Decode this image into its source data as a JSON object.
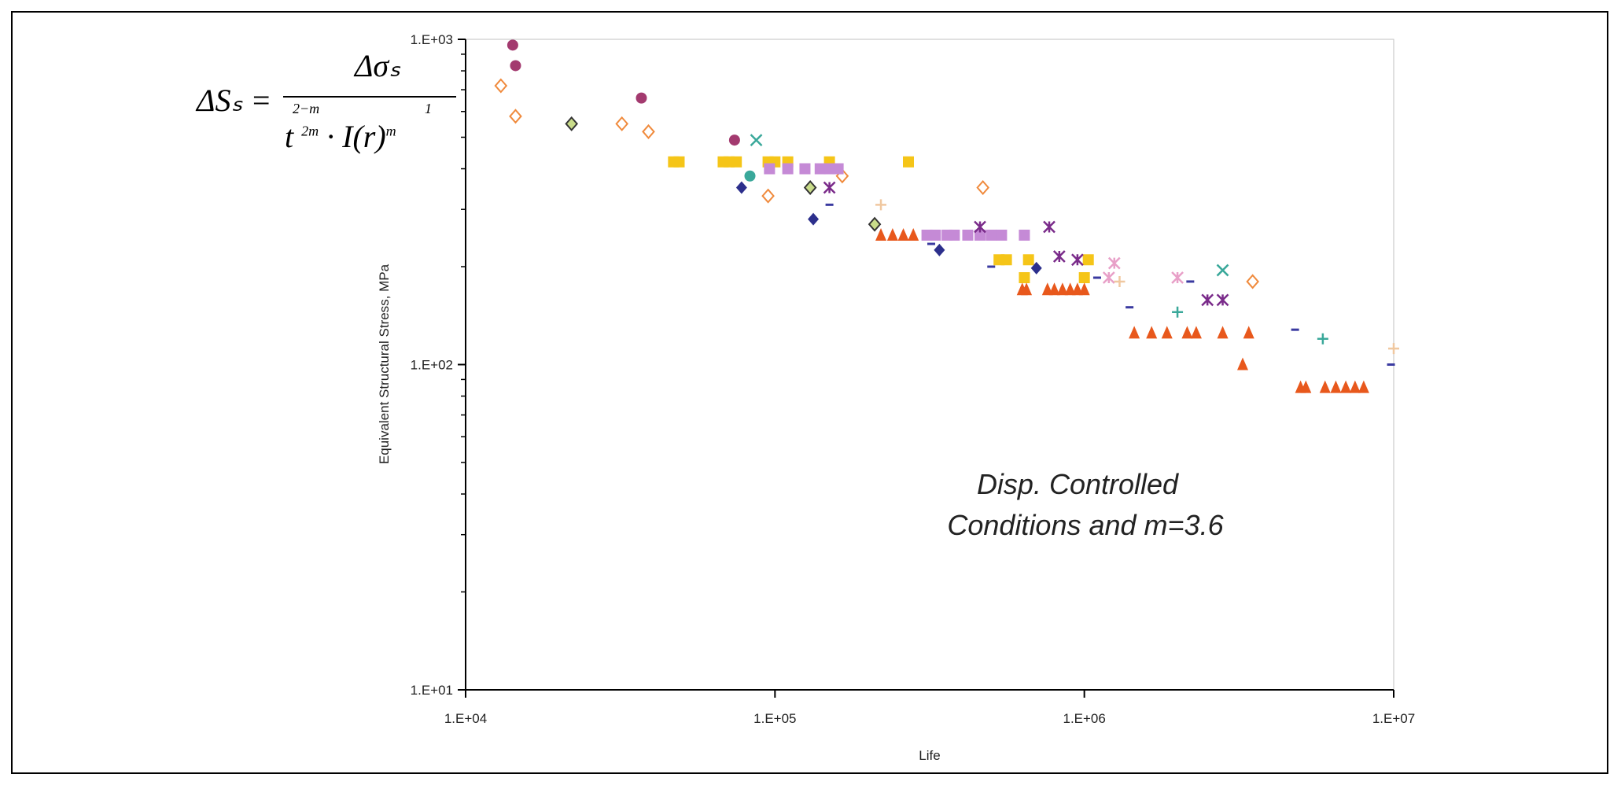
{
  "chart_data": {
    "type": "scatter",
    "title": "",
    "xlabel": "Life",
    "ylabel": "Equivalent Structural Stress, MPa",
    "xscale": "log",
    "yscale": "log",
    "xlim": [
      10000,
      10000000
    ],
    "ylim": [
      10,
      1000
    ],
    "xticks": [
      "1.E+04",
      "1.E+05",
      "1.E+06",
      "1.E+07"
    ],
    "yticks": [
      "1.E+01",
      "1.E+02",
      "1.E+03"
    ],
    "grid": false,
    "legend": "none",
    "formula": {
      "lhs": "ΔSₛ =",
      "numerator": "Δσₛ",
      "exp_t": "2−m",
      "exp_t_den": "2m",
      "exp_I": "1",
      "exp_I_den": "m",
      "denominator_t": "t",
      "denominator_rest": "· I(r)"
    },
    "annotation_lines": [
      "Disp. Controlled",
      "Conditions and m=3.6"
    ],
    "series": [
      {
        "marker": "circle",
        "color": "#a33a6f",
        "points": [
          [
            14200,
            960
          ],
          [
            14500,
            830
          ],
          [
            37000,
            660
          ],
          [
            74000,
            490
          ]
        ]
      },
      {
        "marker": "diamond-open",
        "color": "#f08a3c",
        "points": [
          [
            13000,
            720
          ],
          [
            14500,
            580
          ],
          [
            32000,
            550
          ],
          [
            39000,
            520
          ],
          [
            95000,
            330
          ],
          [
            165000,
            380
          ],
          [
            470000,
            350
          ],
          [
            3500000,
            180
          ]
        ]
      },
      {
        "marker": "diamond-green",
        "color": "#7a9a3a",
        "points": [
          [
            22000,
            550
          ],
          [
            130000,
            350
          ],
          [
            210000,
            270
          ]
        ]
      },
      {
        "marker": "square",
        "color": "#f5c518",
        "points": [
          [
            47000,
            420
          ],
          [
            49000,
            420
          ],
          [
            68000,
            420
          ],
          [
            71000,
            420
          ],
          [
            75000,
            420
          ],
          [
            95000,
            420
          ],
          [
            100000,
            420
          ],
          [
            110000,
            420
          ],
          [
            150000,
            420
          ],
          [
            270000,
            420
          ],
          [
            530000,
            210
          ],
          [
            560000,
            210
          ],
          [
            640000,
            185
          ],
          [
            660000,
            210
          ],
          [
            1000000,
            185
          ],
          [
            1030000,
            210
          ]
        ]
      },
      {
        "marker": "square",
        "color": "#c58ad6",
        "points": [
          [
            96000,
            400
          ],
          [
            110000,
            400
          ],
          [
            125000,
            400
          ],
          [
            140000,
            400
          ],
          [
            150000,
            400
          ],
          [
            160000,
            400
          ],
          [
            310000,
            250
          ],
          [
            330000,
            250
          ],
          [
            360000,
            250
          ],
          [
            380000,
            250
          ],
          [
            420000,
            250
          ],
          [
            460000,
            250
          ],
          [
            500000,
            250
          ],
          [
            540000,
            250
          ],
          [
            640000,
            250
          ]
        ]
      },
      {
        "marker": "diamond",
        "color": "#2c2f8c",
        "points": [
          [
            78000,
            350
          ],
          [
            133000,
            280
          ],
          [
            340000,
            225
          ],
          [
            700000,
            198
          ]
        ]
      },
      {
        "marker": "circle",
        "color": "#3aa89a",
        "points": [
          [
            83000,
            380
          ]
        ]
      },
      {
        "marker": "x",
        "color": "#3aa89a",
        "points": [
          [
            87000,
            490
          ],
          [
            2800000,
            195
          ]
        ]
      },
      {
        "marker": "asterisk",
        "color": "#7a2b8a",
        "points": [
          [
            150000,
            350
          ],
          [
            460000,
            265
          ],
          [
            770000,
            265
          ],
          [
            830000,
            215
          ],
          [
            950000,
            210
          ],
          [
            2500000,
            158
          ],
          [
            2800000,
            158
          ]
        ]
      },
      {
        "marker": "asterisk",
        "color": "#e8a0c8",
        "points": [
          [
            1200000,
            185
          ],
          [
            1250000,
            205
          ],
          [
            2000000,
            185
          ]
        ]
      },
      {
        "marker": "triangle",
        "color": "#e8581c",
        "points": [
          [
            220000,
            250
          ],
          [
            240000,
            250
          ],
          [
            260000,
            250
          ],
          [
            280000,
            250
          ],
          [
            630000,
            170
          ],
          [
            650000,
            170
          ],
          [
            760000,
            170
          ],
          [
            800000,
            170
          ],
          [
            850000,
            170
          ],
          [
            900000,
            170
          ],
          [
            950000,
            170
          ],
          [
            1000000,
            170
          ],
          [
            1450000,
            125
          ],
          [
            1650000,
            125
          ],
          [
            1850000,
            125
          ],
          [
            2150000,
            125
          ],
          [
            2300000,
            125
          ],
          [
            2800000,
            125
          ],
          [
            3400000,
            125
          ],
          [
            3250000,
            100
          ],
          [
            5000000,
            85
          ],
          [
            5200000,
            85
          ],
          [
            6000000,
            85
          ],
          [
            6500000,
            85
          ],
          [
            7000000,
            85
          ],
          [
            7500000,
            85
          ],
          [
            8000000,
            85
          ]
        ]
      },
      {
        "marker": "plus",
        "color": "#3aa89a",
        "points": [
          [
            2000000,
            145
          ],
          [
            5900000,
            120
          ]
        ]
      },
      {
        "marker": "plus",
        "color": "#f0c8a0",
        "points": [
          [
            220000,
            310
          ],
          [
            1300000,
            180
          ],
          [
            10000000,
            112
          ]
        ]
      },
      {
        "marker": "dash",
        "color": "#3a3aa0",
        "points": [
          [
            150000,
            310
          ],
          [
            320000,
            235
          ],
          [
            500000,
            200
          ],
          [
            1100000,
            185
          ],
          [
            1400000,
            150
          ],
          [
            2200000,
            180
          ],
          [
            4800000,
            128
          ],
          [
            9800000,
            100
          ]
        ]
      }
    ]
  }
}
